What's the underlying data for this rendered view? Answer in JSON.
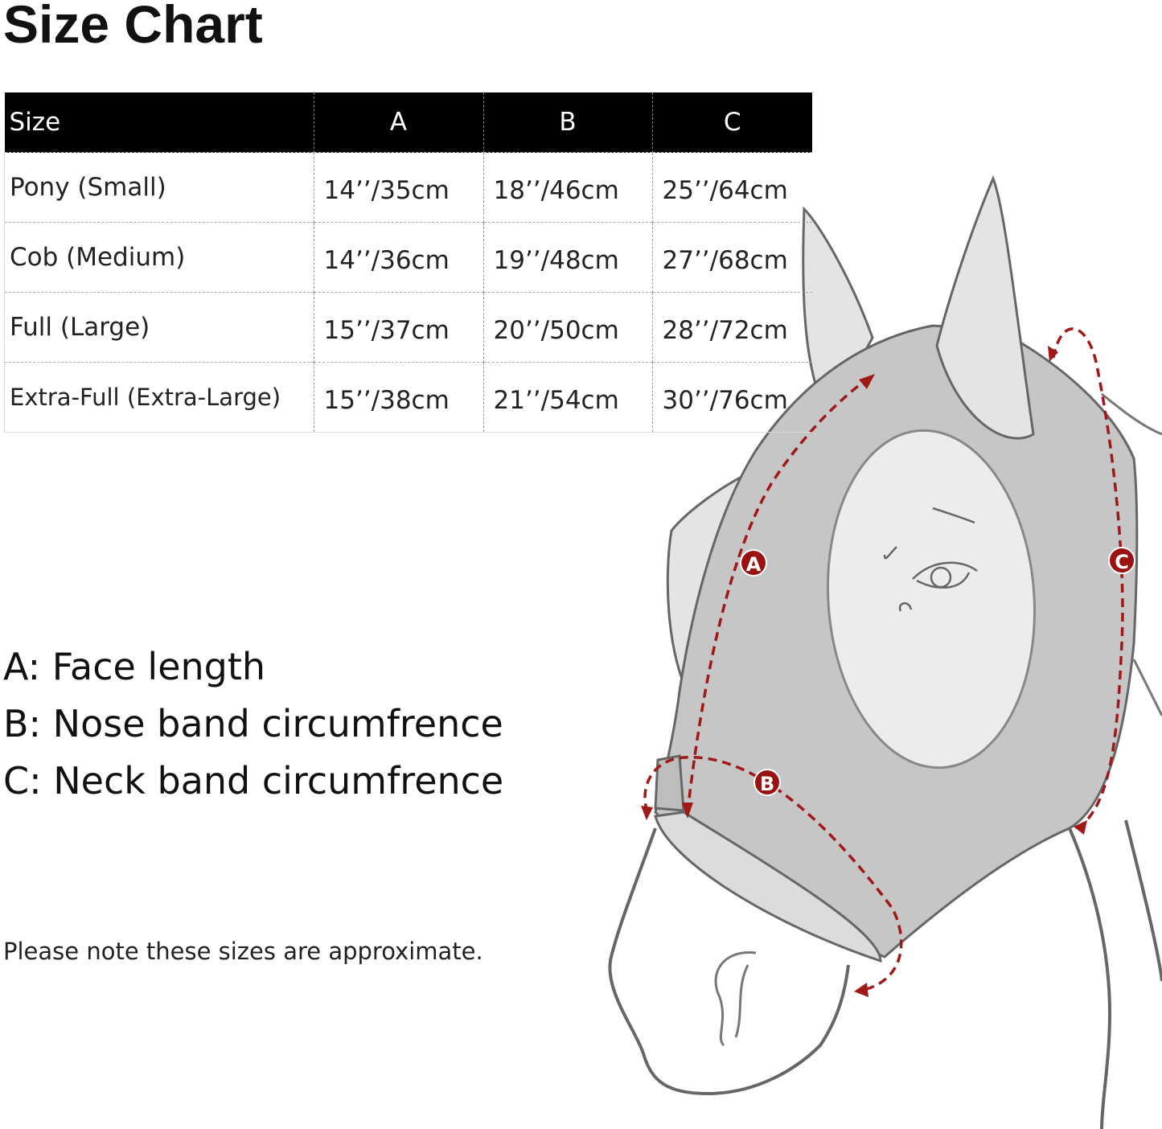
{
  "title": "Size Chart",
  "table": {
    "headers": [
      "Size",
      "A",
      "B",
      "C"
    ],
    "rows": [
      [
        "Pony (Small)",
        "14’’/35cm",
        "18’’/46cm",
        "25’’/64cm"
      ],
      [
        "Cob (Medium)",
        "14’’/36cm",
        "19’’/48cm",
        "27’’/68cm"
      ],
      [
        "Full (Large)",
        "15’’/37cm",
        "20’’/50cm",
        "28’’/72cm"
      ],
      [
        "Extra-Full (Extra-Large)",
        "15’’/38cm",
        "21’’/54cm",
        "30’’/76cm"
      ]
    ]
  },
  "legend": [
    "A: Face length",
    "B: Nose band circumfrence",
    "C: Neck band circumfrence"
  ],
  "note": "Please note these sizes are approximate.",
  "diagram": {
    "markers": [
      "A",
      "B",
      "C"
    ],
    "colors": {
      "measure": "#a01818",
      "mask": "#c6c6c6",
      "eye_opening": "#ececec",
      "ears": "#e4e4e4",
      "outline": "#666666"
    }
  }
}
